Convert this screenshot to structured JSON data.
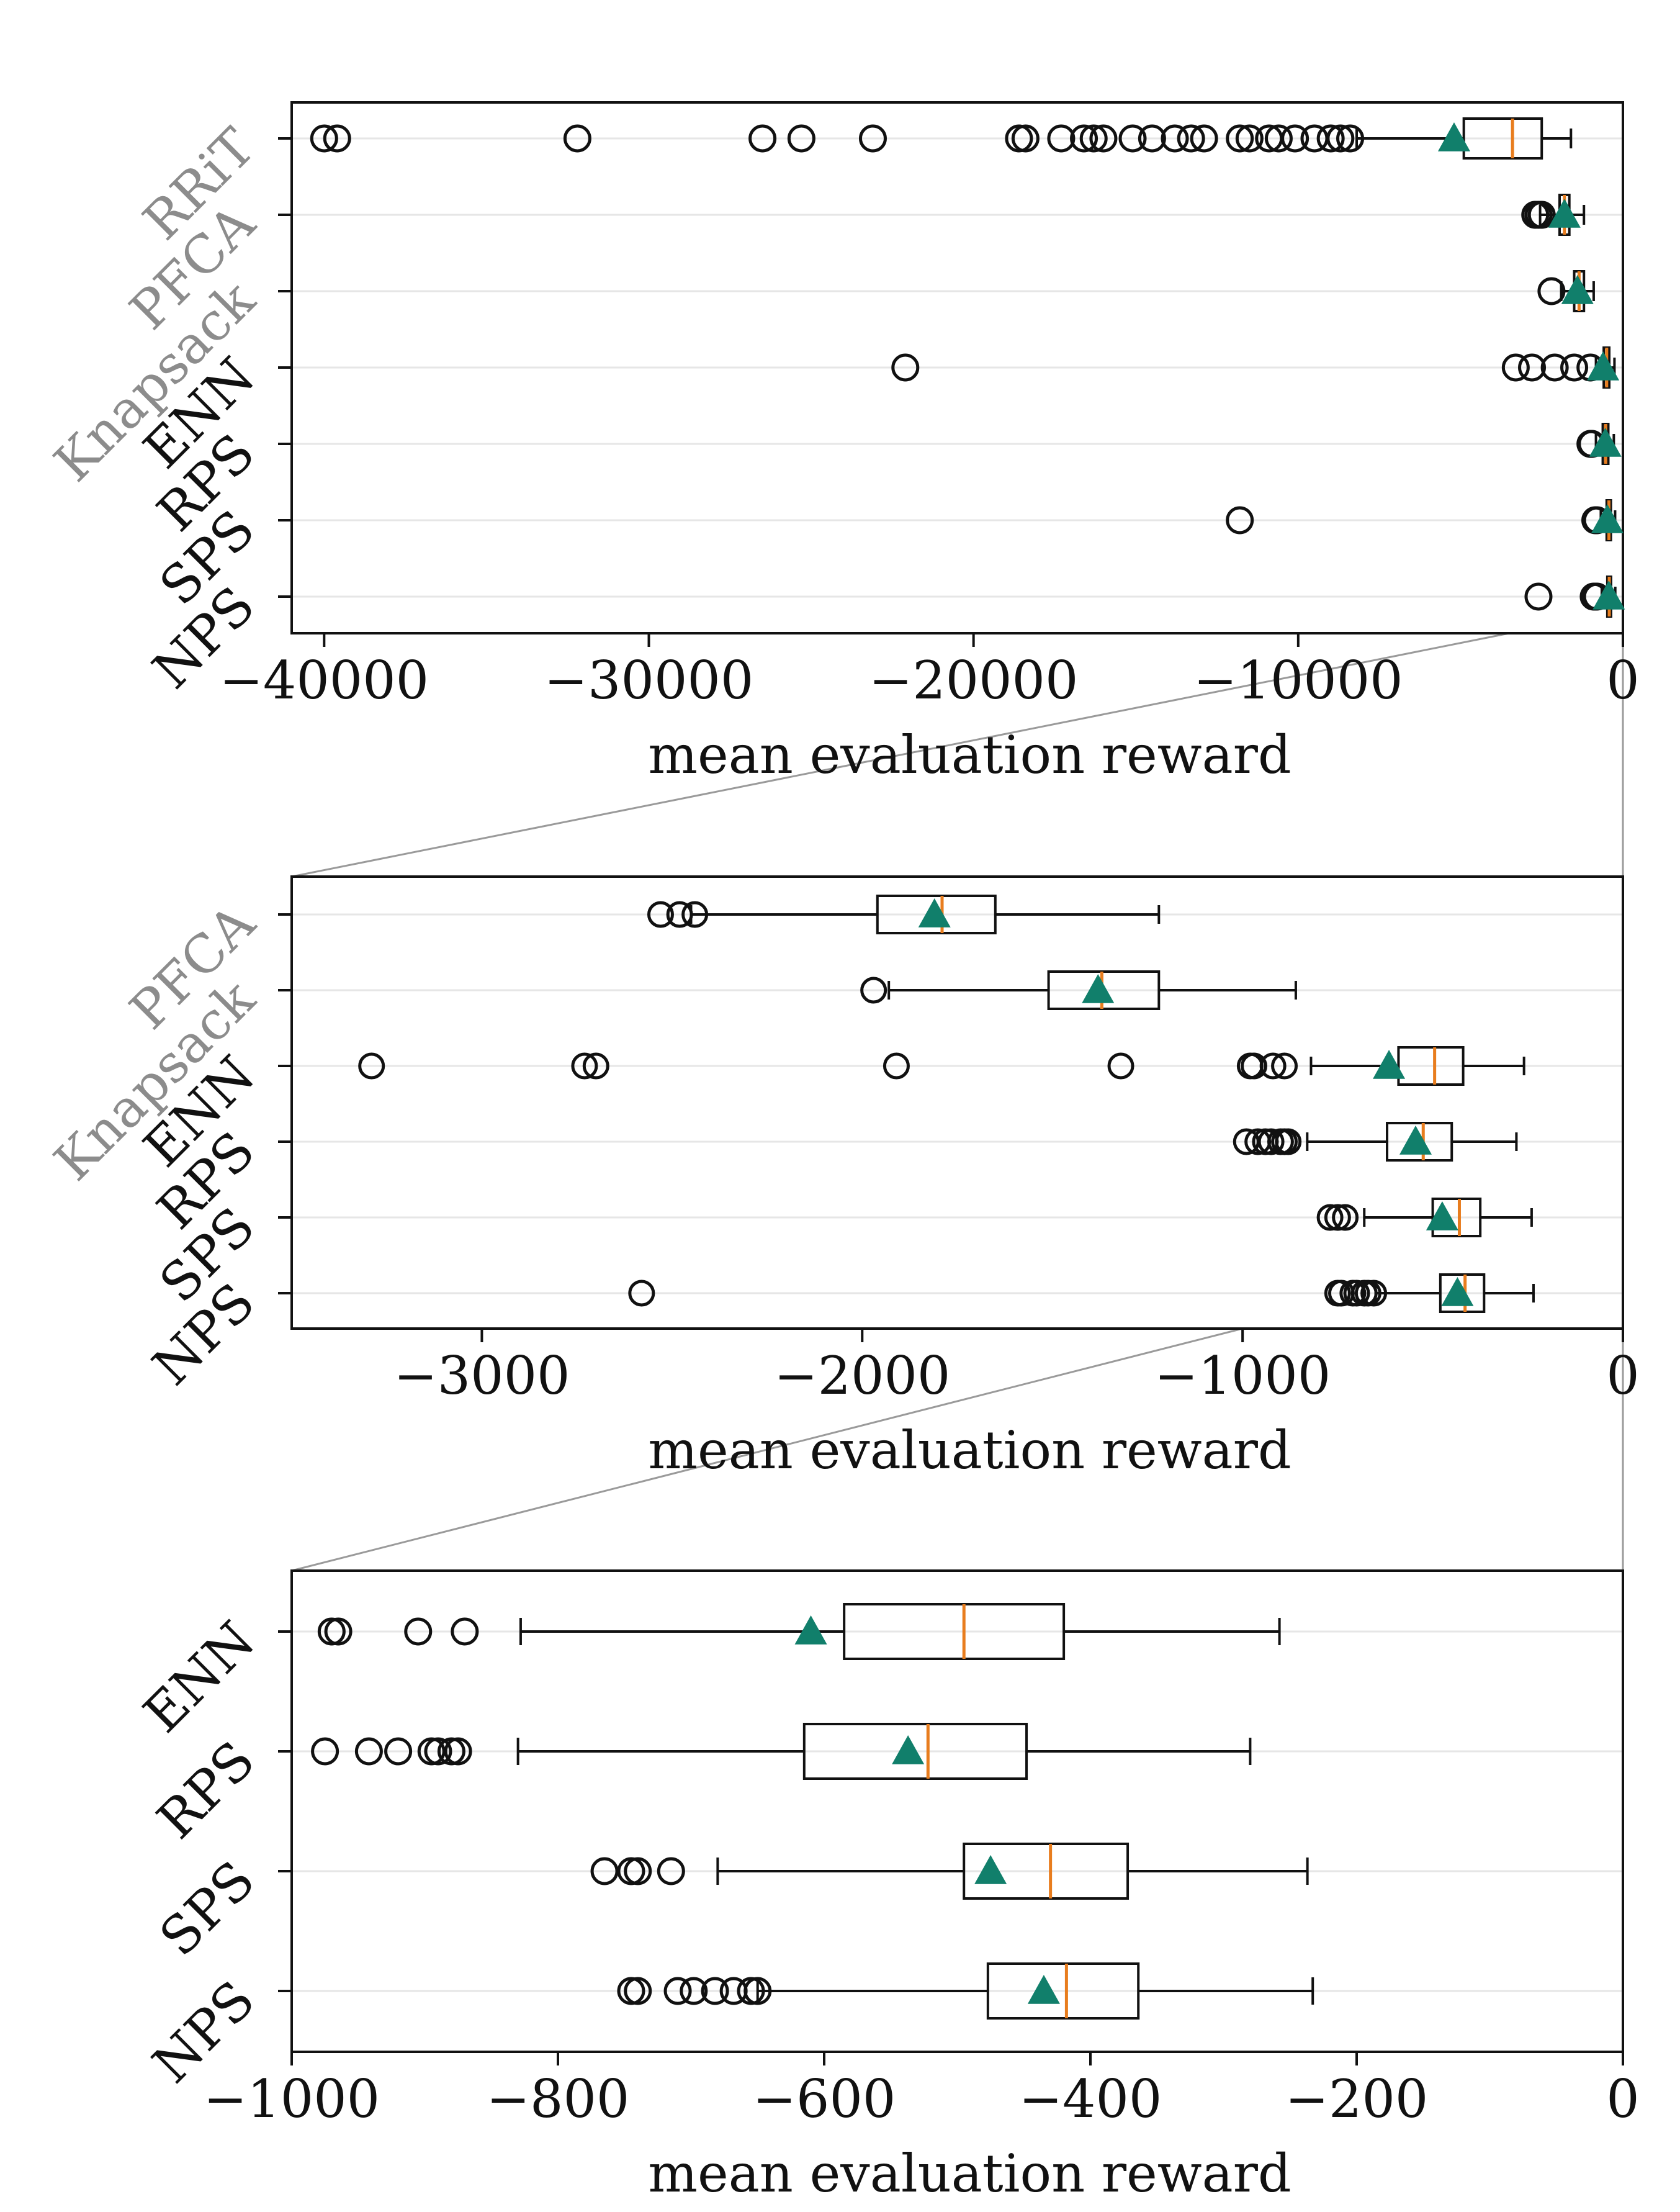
{
  "chart_data": [
    {
      "type": "boxplot",
      "orientation": "horizontal",
      "xlabel": "mean evaluation reward",
      "xlim": [
        -41000,
        0
      ],
      "xticks": [
        -40000,
        -30000,
        -20000,
        -10000,
        0
      ],
      "xtick_labels": [
        "−40000",
        "−30000",
        "−20000",
        "−10000",
        "0"
      ],
      "categories": [
        {
          "name": "RRiT",
          "color": "#8c8c8c",
          "whisker_low": -8200,
          "q1": -4900,
          "median": -3400,
          "q3": -2500,
          "whisker_high": -1600,
          "mean": -5200,
          "outliers": [
            -40000,
            -39600,
            -32200,
            -26500,
            -25300,
            -23100,
            -18600,
            -18400,
            -17300,
            -16600,
            -16300,
            -16000,
            -15100,
            -14500,
            -13800,
            -13300,
            -12900,
            -11800,
            -11500,
            -10900,
            -10600,
            -10100,
            -9500,
            -9000,
            -8700,
            -8400
          ]
        },
        {
          "name": "PFCA",
          "color": "#8c8c8c",
          "whisker_low": -2550,
          "q1": -1950,
          "median": -1800,
          "q3": -1650,
          "whisker_high": -1200,
          "mean": -1800,
          "outliers": [
            -2700,
            -2600,
            -2500
          ]
        },
        {
          "name": "Knapsack",
          "color": "#8c8c8c",
          "whisker_low": -1900,
          "q1": -1500,
          "median": -1350,
          "q3": -1200,
          "whisker_high": -900,
          "mean": -1400,
          "outliers": [
            -2200
          ]
        },
        {
          "name": "ENN",
          "color": "#111111",
          "whisker_low": -830,
          "q1": -590,
          "median": -500,
          "q3": -420,
          "whisker_high": -260,
          "mean": -610,
          "outliers": [
            -22100,
            -3300,
            -2800,
            -2100,
            -1500,
            -1000
          ]
        },
        {
          "name": "RPS",
          "color": "#111111",
          "whisker_low": -830,
          "q1": -620,
          "median": -530,
          "q3": -450,
          "whisker_high": -280,
          "mean": -540,
          "outliers": [
            -1000,
            -980,
            -960
          ]
        },
        {
          "name": "SPS",
          "color": "#111111",
          "whisker_low": -680,
          "q1": -500,
          "median": -430,
          "q3": -370,
          "whisker_high": -240,
          "mean": -480,
          "outliers": [
            -11800,
            -850,
            -800
          ]
        },
        {
          "name": "NPS",
          "color": "#111111",
          "whisker_low": -650,
          "q1": -480,
          "median": -420,
          "q3": -365,
          "whisker_high": -235,
          "mean": -435,
          "outliers": [
            -2600,
            -900,
            -850,
            -800
          ]
        }
      ]
    },
    {
      "type": "boxplot",
      "orientation": "horizontal",
      "xlabel": "mean evaluation reward",
      "xlim": [
        -3500,
        0
      ],
      "xticks": [
        -3000,
        -2000,
        -1000,
        0
      ],
      "xtick_labels": [
        "−3000",
        "−2000",
        "−1000",
        "0"
      ],
      "categories": [
        {
          "name": "PFCA",
          "color": "#8c8c8c",
          "whisker_low": -2450,
          "q1": -1960,
          "median": -1790,
          "q3": -1650,
          "whisker_high": -1220,
          "mean": -1810,
          "outliers": [
            -2530,
            -2480,
            -2440
          ]
        },
        {
          "name": "Knapsack",
          "color": "#8c8c8c",
          "whisker_low": -1930,
          "q1": -1510,
          "median": -1370,
          "q3": -1220,
          "whisker_high": -860,
          "mean": -1380,
          "outliers": [
            -1970
          ]
        },
        {
          "name": "ENN",
          "color": "#111111",
          "whisker_low": -820,
          "q1": -590,
          "median": -495,
          "q3": -420,
          "whisker_high": -260,
          "mean": -615,
          "outliers": [
            -3290,
            -2730,
            -2700,
            -1910,
            -1320,
            -980,
            -970,
            -920,
            -890
          ]
        },
        {
          "name": "RPS",
          "color": "#111111",
          "whisker_low": -830,
          "q1": -620,
          "median": -525,
          "q3": -450,
          "whisker_high": -280,
          "mean": -545,
          "outliers": [
            -990,
            -960,
            -940,
            -925,
            -900,
            -890,
            -880
          ]
        },
        {
          "name": "SPS",
          "color": "#111111",
          "whisker_low": -680,
          "q1": -500,
          "median": -430,
          "q3": -375,
          "whisker_high": -240,
          "mean": -475,
          "outliers": [
            -770,
            -750,
            -730
          ]
        },
        {
          "name": "NPS",
          "color": "#111111",
          "whisker_low": -650,
          "q1": -480,
          "median": -415,
          "q3": -365,
          "whisker_high": -235,
          "mean": -435,
          "outliers": [
            -2580,
            -750,
            -740,
            -710,
            -700,
            -680,
            -670,
            -655
          ]
        }
      ]
    },
    {
      "type": "boxplot",
      "orientation": "horizontal",
      "xlabel": "mean evaluation reward",
      "xlim": [
        -1000,
        0
      ],
      "xticks": [
        -1000,
        -800,
        -600,
        -400,
        -200,
        0
      ],
      "xtick_labels": [
        "−1000",
        "−800",
        "−600",
        "−400",
        "−200",
        "0"
      ],
      "categories": [
        {
          "name": "ENN",
          "color": "#111111",
          "whisker_low": -828,
          "q1": -585,
          "median": -495,
          "q3": -420,
          "whisker_high": -258,
          "mean": -610,
          "outliers": [
            -970,
            -965,
            -905,
            -870
          ]
        },
        {
          "name": "RPS",
          "color": "#111111",
          "whisker_low": -830,
          "q1": -615,
          "median": -522,
          "q3": -448,
          "whisker_high": -280,
          "mean": -537,
          "outliers": [
            -975,
            -942,
            -920,
            -895,
            -890,
            -880,
            -875
          ]
        },
        {
          "name": "SPS",
          "color": "#111111",
          "whisker_low": -680,
          "q1": -495,
          "median": -430,
          "q3": -372,
          "whisker_high": -237,
          "mean": -475,
          "outliers": [
            -765,
            -745,
            -740,
            -715
          ]
        },
        {
          "name": "NPS",
          "color": "#111111",
          "whisker_low": -650,
          "q1": -477,
          "median": -418,
          "q3": -364,
          "whisker_high": -233,
          "mean": -435,
          "outliers": [
            -745,
            -740,
            -710,
            -698,
            -682,
            -668,
            -655,
            -650
          ]
        }
      ]
    }
  ],
  "colors": {
    "median": "#e87d1e",
    "mean": "#117f6b",
    "box": "#111111",
    "grid": "#e6e6e6",
    "connector": "#9a9a9a",
    "dim_label": "#8c8c8c"
  }
}
